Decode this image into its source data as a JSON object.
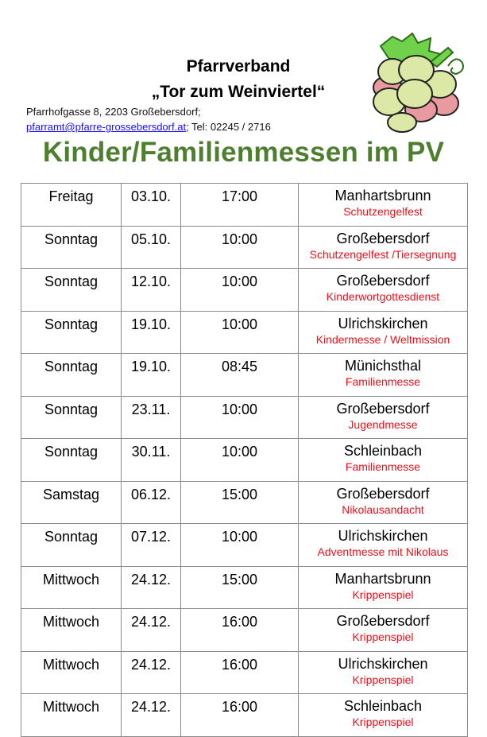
{
  "header": {
    "org_line1": "Pfarrverband",
    "org_line2": "„Tor zum Weinviertel“",
    "address": "Pfarrhofgasse 8, 2203 Großebersdorf;",
    "email": "pfarramt@pfarre-grossebersdorf.at",
    "phone": "; Tel: 02245 / 2716",
    "logo": "grape-cluster-logo"
  },
  "title": "Kinder/Familienmessen im PV",
  "colors": {
    "title": "#4e7f2e",
    "event": "#e8101a",
    "link": "#1a0dff"
  },
  "rows": [
    {
      "day": "Freitag",
      "date": "03.10.",
      "time": "17:00",
      "place": "Manhartsbrunn",
      "event": "Schutzengelfest"
    },
    {
      "day": "Sonntag",
      "date": "05.10.",
      "time": "10:00",
      "place": "Großebersdorf",
      "event": "Schutzengelfest /Tiersegnung"
    },
    {
      "day": "Sonntag",
      "date": "12.10.",
      "time": "10:00",
      "place": "Großebersdorf",
      "event": "Kinderwortgottesdienst"
    },
    {
      "day": "Sonntag",
      "date": "19.10.",
      "time": "10:00",
      "place": "Ulrichskirchen",
      "event": "Kindermesse / Weltmission"
    },
    {
      "day": "Sonntag",
      "date": "19.10.",
      "time": "08:45",
      "place": "Münichsthal",
      "event": "Familienmesse"
    },
    {
      "day": "Sonntag",
      "date": "23.11.",
      "time": "10:00",
      "place": "Großebersdorf",
      "event": "Jugendmesse"
    },
    {
      "day": "Sonntag",
      "date": "30.11.",
      "time": "10:00",
      "place": "Schleinbach",
      "event": "Familienmesse"
    },
    {
      "day": "Samstag",
      "date": "06.12.",
      "time": "15:00",
      "place": "Großebersdorf",
      "event": "Nikolausandacht"
    },
    {
      "day": "Sonntag",
      "date": "07.12.",
      "time": "10:00",
      "place": "Ulrichskirchen",
      "event": "Adventmesse mit Nikolaus"
    },
    {
      "day": "Mittwoch",
      "date": "24.12.",
      "time": "15:00",
      "place": "Manhartsbrunn",
      "event": "Krippenspiel"
    },
    {
      "day": "Mittwoch",
      "date": "24.12.",
      "time": "16:00",
      "place": "Großebersdorf",
      "event": "Krippenspiel"
    },
    {
      "day": "Mittwoch",
      "date": "24.12.",
      "time": "16:00",
      "place": "Ulrichskirchen",
      "event": "Krippenspiel"
    },
    {
      "day": "Mittwoch",
      "date": "24.12.",
      "time": "16:00",
      "place": "Schleinbach",
      "event": "Krippenspiel"
    }
  ]
}
